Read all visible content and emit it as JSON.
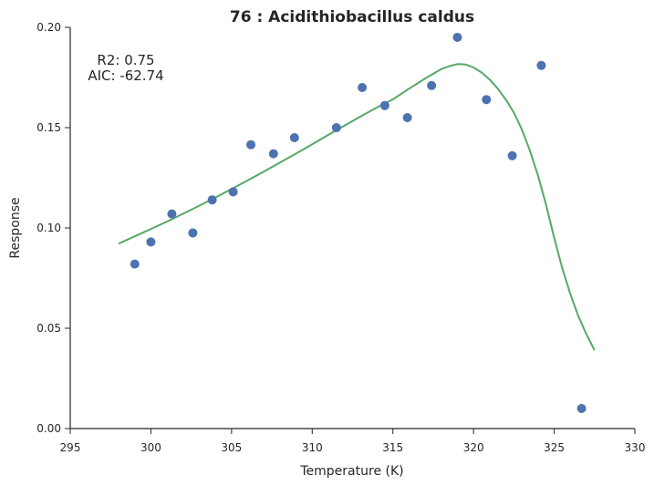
{
  "chart_data": {
    "type": "scatter",
    "title": "76 : Acidithiobacillus caldus",
    "xlabel": "Temperature (K)",
    "ylabel": "Response",
    "xlim": [
      295,
      330
    ],
    "ylim": [
      0,
      0.2
    ],
    "xticks": [
      295,
      300,
      305,
      310,
      315,
      320,
      325,
      330
    ],
    "yticks": [
      0.0,
      0.05,
      0.1,
      0.15,
      0.2
    ],
    "xtick_labels": [
      "295",
      "300",
      "305",
      "310",
      "315",
      "320",
      "325",
      "330"
    ],
    "ytick_labels": [
      "0.00",
      "0.05",
      "0.10",
      "0.15",
      "0.20"
    ],
    "grid": false,
    "annotations": [
      "R2: 0.75",
      "AIC: -62.74"
    ],
    "series": [
      {
        "kind": "points",
        "color": "#4c72b0",
        "x": [
          299.0,
          300.0,
          301.3,
          302.6,
          303.8,
          305.1,
          306.2,
          307.6,
          308.9,
          311.5,
          313.1,
          314.5,
          315.9,
          317.4,
          319.0,
          320.8,
          322.4,
          324.2,
          326.7
        ],
        "y": [
          0.082,
          0.093,
          0.107,
          0.0975,
          0.114,
          0.118,
          0.1415,
          0.137,
          0.145,
          0.15,
          0.17,
          0.161,
          0.155,
          0.171,
          0.195,
          0.164,
          0.136,
          0.181,
          0.01
        ]
      },
      {
        "kind": "fit",
        "color": "#55a868",
        "x": [
          298.0,
          299.0,
          300.0,
          301.0,
          302.0,
          303.0,
          304.0,
          305.0,
          306.0,
          307.0,
          308.0,
          309.0,
          310.0,
          311.0,
          312.0,
          313.0,
          314.0,
          315.0,
          316.0,
          317.0,
          318.0,
          318.5,
          319.0,
          319.5,
          320.0,
          320.5,
          321.0,
          321.5,
          322.0,
          322.5,
          323.0,
          323.5,
          324.0,
          324.5,
          325.0,
          325.5,
          326.0,
          326.5,
          327.0,
          327.5
        ],
        "y": [
          0.0922,
          0.0958,
          0.0995,
          0.1032,
          0.1071,
          0.1111,
          0.1152,
          0.1194,
          0.1237,
          0.1281,
          0.1326,
          0.1371,
          0.1417,
          0.1464,
          0.151,
          0.1556,
          0.16,
          0.1641,
          0.1694,
          0.1745,
          0.1792,
          0.1807,
          0.1817,
          0.1815,
          0.18,
          0.1775,
          0.174,
          0.1695,
          0.164,
          0.1575,
          0.149,
          0.1385,
          0.126,
          0.1115,
          0.095,
          0.08,
          0.067,
          0.056,
          0.047,
          0.039
        ]
      }
    ]
  }
}
